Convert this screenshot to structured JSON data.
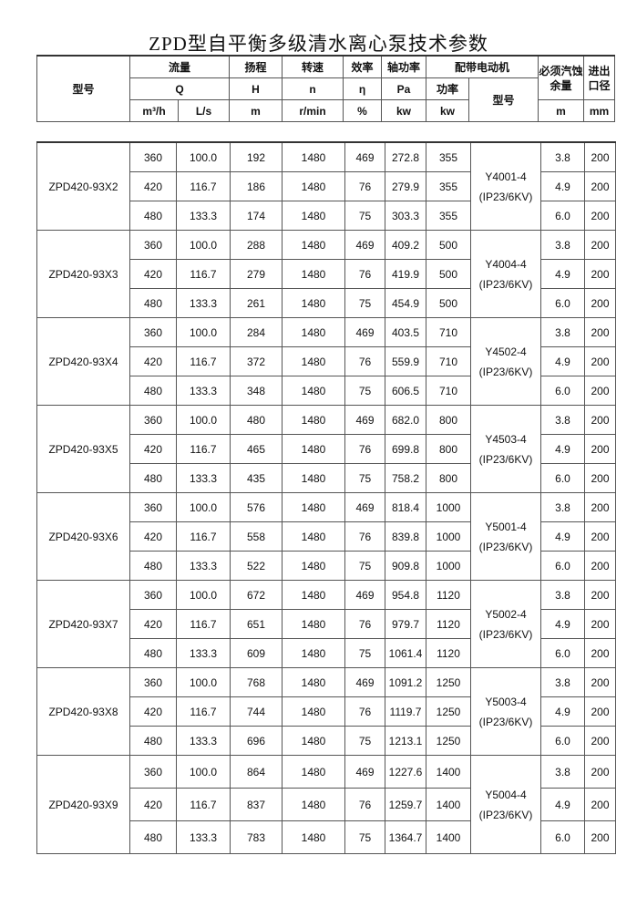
{
  "title": "ZPD型自平衡多级清水离心泵技术参数",
  "header": {
    "model": "型号",
    "flow": "流量",
    "flow_sym": "Q",
    "flow_unit1": "m³/h",
    "flow_unit2": "L/s",
    "head": "扬程",
    "head_sym": "H",
    "head_unit": "m",
    "speed": "转速",
    "speed_sym": "n",
    "speed_unit": "r/min",
    "eff": "效率",
    "eff_sym": "η",
    "eff_unit": "%",
    "shaft": "轴功率",
    "shaft_sym": "Pa",
    "shaft_unit": "kw",
    "motor": "配带电动机",
    "motor_power": "功率",
    "motor_power_unit": "kw",
    "motor_model": "型号",
    "npsh": "必须汽蚀余量",
    "npsh_unit": "m",
    "dia": "进出口径",
    "dia_unit": "mm"
  },
  "groups": [
    {
      "model": "ZPD420-93X2",
      "motor": "Y4001-4",
      "motor_spec": "(IP23/6KV)",
      "rows": [
        [
          "360",
          "100.0",
          "192",
          "1480",
          "469",
          "272.8",
          "355",
          "3.8",
          "200"
        ],
        [
          "420",
          "116.7",
          "186",
          "1480",
          "76",
          "279.9",
          "355",
          "4.9",
          "200"
        ],
        [
          "480",
          "133.3",
          "174",
          "1480",
          "75",
          "303.3",
          "355",
          "6.0",
          "200"
        ]
      ]
    },
    {
      "model": "ZPD420-93X3",
      "motor": "Y4004-4",
      "motor_spec": "(IP23/6KV)",
      "rows": [
        [
          "360",
          "100.0",
          "288",
          "1480",
          "469",
          "409.2",
          "500",
          "3.8",
          "200"
        ],
        [
          "420",
          "116.7",
          "279",
          "1480",
          "76",
          "419.9",
          "500",
          "4.9",
          "200"
        ],
        [
          "480",
          "133.3",
          "261",
          "1480",
          "75",
          "454.9",
          "500",
          "6.0",
          "200"
        ]
      ]
    },
    {
      "model": "ZPD420-93X4",
      "motor": "Y4502-4",
      "motor_spec": "(IP23/6KV)",
      "rows": [
        [
          "360",
          "100.0",
          "284",
          "1480",
          "469",
          "403.5",
          "710",
          "3.8",
          "200"
        ],
        [
          "420",
          "116.7",
          "372",
          "1480",
          "76",
          "559.9",
          "710",
          "4.9",
          "200"
        ],
        [
          "480",
          "133.3",
          "348",
          "1480",
          "75",
          "606.5",
          "710",
          "6.0",
          "200"
        ]
      ]
    },
    {
      "model": "ZPD420-93X5",
      "motor": "Y4503-4",
      "motor_spec": "(IP23/6KV)",
      "rows": [
        [
          "360",
          "100.0",
          "480",
          "1480",
          "469",
          "682.0",
          "800",
          "3.8",
          "200"
        ],
        [
          "420",
          "116.7",
          "465",
          "1480",
          "76",
          "699.8",
          "800",
          "4.9",
          "200"
        ],
        [
          "480",
          "133.3",
          "435",
          "1480",
          "75",
          "758.2",
          "800",
          "6.0",
          "200"
        ]
      ]
    },
    {
      "model": "ZPD420-93X6",
      "motor": "Y5001-4",
      "motor_spec": "(IP23/6KV)",
      "rows": [
        [
          "360",
          "100.0",
          "576",
          "1480",
          "469",
          "818.4",
          "1000",
          "3.8",
          "200"
        ],
        [
          "420",
          "116.7",
          "558",
          "1480",
          "76",
          "839.8",
          "1000",
          "4.9",
          "200"
        ],
        [
          "480",
          "133.3",
          "522",
          "1480",
          "75",
          "909.8",
          "1000",
          "6.0",
          "200"
        ]
      ]
    },
    {
      "model": "ZPD420-93X7",
      "motor": "Y5002-4",
      "motor_spec": "(IP23/6KV)",
      "rows": [
        [
          "360",
          "100.0",
          "672",
          "1480",
          "469",
          "954.8",
          "1120",
          "3.8",
          "200"
        ],
        [
          "420",
          "116.7",
          "651",
          "1480",
          "76",
          "979.7",
          "1120",
          "4.9",
          "200"
        ],
        [
          "480",
          "133.3",
          "609",
          "1480",
          "75",
          "1061.4",
          "1120",
          "6.0",
          "200"
        ]
      ]
    },
    {
      "model": "ZPD420-93X8",
      "motor": "Y5003-4",
      "motor_spec": "(IP23/6KV)",
      "rows": [
        [
          "360",
          "100.0",
          "768",
          "1480",
          "469",
          "1091.2",
          "1250",
          "3.8",
          "200"
        ],
        [
          "420",
          "116.7",
          "744",
          "1480",
          "76",
          "1119.7",
          "1250",
          "4.9",
          "200"
        ],
        [
          "480",
          "133.3",
          "696",
          "1480",
          "75",
          "1213.1",
          "1250",
          "6.0",
          "200"
        ]
      ]
    },
    {
      "model": "ZPD420-93X9",
      "motor": "Y5004-4",
      "motor_spec": "(IP23/6KV)",
      "rows": [
        [
          "360",
          "100.0",
          "864",
          "1480",
          "469",
          "1227.6",
          "1400",
          "3.8",
          "200"
        ],
        [
          "420",
          "116.7",
          "837",
          "1480",
          "76",
          "1259.7",
          "1400",
          "4.9",
          "200"
        ],
        [
          "480",
          "133.3",
          "783",
          "1480",
          "75",
          "1364.7",
          "1400",
          "6.0",
          "200"
        ]
      ]
    }
  ]
}
